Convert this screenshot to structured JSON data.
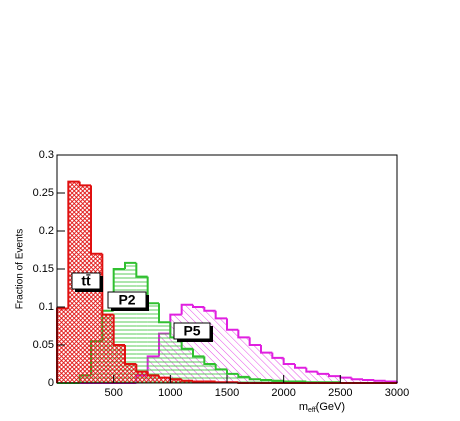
{
  "chart_data": {
    "type": "histogram",
    "xlabel": {
      "main": "m",
      "sub": "eff",
      "unit": "(GeV)"
    },
    "ylabel": "Fraction of Events",
    "bins": [
      0,
      100,
      200,
      300,
      400,
      500,
      600,
      700,
      800,
      900,
      1000,
      1100,
      1200,
      1300,
      1400,
      1500,
      1600,
      1700,
      1800,
      1900,
      2000,
      2100,
      2200,
      2300,
      2400,
      2500,
      2600,
      2700,
      2800,
      2900,
      3000
    ],
    "series": [
      {
        "name": "P5",
        "color": "#e020e0",
        "values": [
          0,
          0,
          0,
          0,
          0,
          0,
          0,
          0.01,
          0.035,
          0.065,
          0.09,
          0.103,
          0.1,
          0.095,
          0.085,
          0.07,
          0.06,
          0.05,
          0.04,
          0.033,
          0.025,
          0.02,
          0.015,
          0.012,
          0.009,
          0.007,
          0.005,
          0.004,
          0.003,
          0.002
        ]
      },
      {
        "name": "P2",
        "color": "#30c030",
        "values": [
          0,
          0,
          0.01,
          0.055,
          0.095,
          0.15,
          0.158,
          0.14,
          0.105,
          0.08,
          0.06,
          0.045,
          0.035,
          0.025,
          0.018,
          0.012,
          0.008,
          0.005,
          0.004,
          0.003,
          0.002,
          0.002,
          0.001,
          0.001,
          0.001,
          0,
          0,
          0,
          0,
          0
        ]
      },
      {
        "name": "tt̄",
        "color": "#e01010",
        "values": [
          0.098,
          0.265,
          0.26,
          0.17,
          0.09,
          0.05,
          0.025,
          0.015,
          0.01,
          0.007,
          0.005,
          0.003,
          0.002,
          0.002,
          0.001,
          0.001,
          0,
          0,
          0,
          0,
          0,
          0,
          0,
          0,
          0,
          0,
          0,
          0,
          0,
          0
        ]
      }
    ],
    "xlim": [
      0,
      3000
    ],
    "xticks": [
      0,
      500,
      1000,
      1500,
      2000,
      2500,
      3000
    ],
    "ylim": [
      0,
      0.3
    ],
    "yticks": [
      0,
      0.05,
      0.1,
      0.15,
      0.2,
      0.25,
      0.3
    ]
  }
}
